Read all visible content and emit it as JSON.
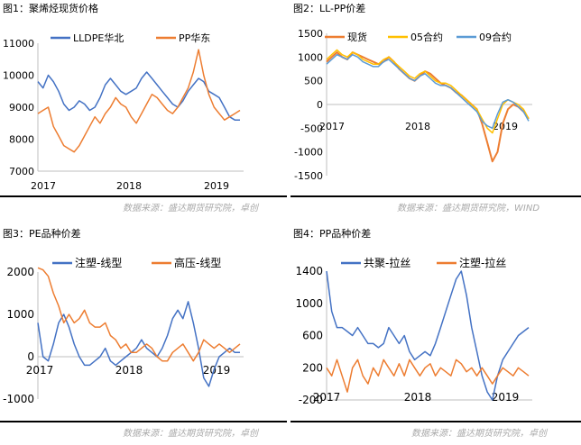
{
  "panels": [
    {
      "title": "图1：聚烯烃现货价格"
    },
    {
      "title": "图2：LL-PP价差"
    },
    {
      "title": "图3：PE品种价差"
    },
    {
      "title": "图4：PP品种价差"
    }
  ],
  "sources": [
    "数据来源：盛达期货研究院，卓创",
    "数据来源：盛达期货研究院，WIND",
    "数据来源：盛达期货研究院，卓创",
    "数据来源：盛达期货研究院，卓创"
  ],
  "chart_data": [
    {
      "type": "line",
      "title": "",
      "x_ticks": [
        "2017",
        "2018",
        "2019"
      ],
      "y_ticks": [
        7000,
        8000,
        9000,
        10000,
        11000
      ],
      "ylim": [
        7000,
        11000
      ],
      "grid": false,
      "legend": "top",
      "series": [
        {
          "name": "LLDPE华北",
          "color": "#4472c4",
          "values": [
            9800,
            9600,
            10000,
            9800,
            9500,
            9100,
            8900,
            9000,
            9200,
            9100,
            8900,
            9000,
            9300,
            9700,
            9900,
            9700,
            9500,
            9400,
            9500,
            9600,
            9900,
            10100,
            9900,
            9700,
            9500,
            9300,
            9100,
            9000,
            9200,
            9500,
            9700,
            9900,
            9800,
            9500,
            9400,
            9300,
            9000,
            8700,
            8600,
            8600
          ]
        },
        {
          "name": "PP华东",
          "color": "#ed7d31",
          "values": [
            8800,
            8900,
            9000,
            8400,
            8100,
            7800,
            7700,
            7600,
            7800,
            8100,
            8400,
            8700,
            8500,
            8800,
            9000,
            9300,
            9100,
            9000,
            8700,
            8500,
            8800,
            9100,
            9400,
            9300,
            9100,
            8900,
            8800,
            9000,
            9300,
            9600,
            10100,
            10800,
            10000,
            9400,
            9000,
            8800,
            8600,
            8700,
            8800,
            8900
          ]
        }
      ]
    },
    {
      "type": "line",
      "title": "",
      "x_ticks": [
        "2017",
        "2018",
        "2019"
      ],
      "y_ticks": [
        -1500,
        -1000,
        -500,
        0,
        500,
        1000,
        1500
      ],
      "ylim": [
        -1500,
        1500
      ],
      "grid": false,
      "legend": "top",
      "series": [
        {
          "name": "现货",
          "color": "#ed7d31",
          "values": [
            900,
            1000,
            1100,
            1000,
            950,
            1100,
            1050,
            1000,
            950,
            900,
            850,
            900,
            1000,
            900,
            750,
            650,
            550,
            500,
            600,
            700,
            650,
            550,
            450,
            400,
            350,
            250,
            200,
            100,
            0,
            -100,
            -400,
            -800,
            -1200,
            -1000,
            -400,
            -100,
            0,
            -50,
            -150,
            -300
          ]
        },
        {
          "name": "05合约",
          "color": "#ffc000",
          "values": [
            950,
            1050,
            1150,
            1050,
            1000,
            1100,
            1050,
            950,
            900,
            850,
            850,
            950,
            1000,
            900,
            800,
            700,
            600,
            550,
            650,
            700,
            600,
            500,
            450,
            450,
            400,
            300,
            200,
            100,
            0,
            -100,
            -300,
            -500,
            -600,
            -300,
            0,
            100,
            50,
            0,
            -100,
            -300
          ]
        },
        {
          "name": "09合约",
          "color": "#5b9bd5",
          "values": [
            850,
            950,
            1050,
            1000,
            950,
            1050,
            1000,
            900,
            850,
            800,
            800,
            900,
            950,
            850,
            750,
            650,
            550,
            500,
            600,
            650,
            550,
            450,
            400,
            400,
            350,
            250,
            150,
            50,
            -50,
            -150,
            -350,
            -450,
            -500,
            -200,
            50,
            100,
            50,
            -50,
            -150,
            -350
          ]
        }
      ]
    },
    {
      "type": "line",
      "title": "",
      "x_ticks": [
        "2017",
        "2018",
        "2019"
      ],
      "y_ticks": [
        -1000,
        0,
        1000,
        2000
      ],
      "ylim": [
        -1000,
        2000
      ],
      "grid": false,
      "legend": "top",
      "series": [
        {
          "name": "注塑-线型",
          "color": "#4472c4",
          "values": [
            800,
            0,
            -100,
            300,
            800,
            1000,
            700,
            300,
            0,
            -200,
            -200,
            -100,
            0,
            200,
            -100,
            -200,
            -100,
            0,
            100,
            200,
            400,
            200,
            100,
            0,
            200,
            500,
            900,
            1100,
            900,
            1300,
            800,
            200,
            -500,
            -700,
            -300,
            0,
            100,
            200,
            100,
            100
          ]
        },
        {
          "name": "高压-线型",
          "color": "#ed7d31",
          "values": [
            2100,
            2050,
            1900,
            1500,
            1200,
            800,
            1000,
            800,
            900,
            1100,
            800,
            700,
            700,
            800,
            500,
            400,
            200,
            300,
            100,
            100,
            200,
            300,
            200,
            0,
            -100,
            -100,
            100,
            200,
            300,
            100,
            -100,
            100,
            400,
            300,
            200,
            300,
            200,
            100,
            200,
            300
          ]
        }
      ]
    },
    {
      "type": "line",
      "title": "",
      "x_ticks": [
        "2017",
        "2018",
        "2019"
      ],
      "y_ticks": [
        -200,
        200,
        600,
        1000,
        1400
      ],
      "ylim": [
        -200,
        1400
      ],
      "grid": false,
      "legend": "top",
      "series": [
        {
          "name": "共聚-拉丝",
          "color": "#4472c4",
          "values": [
            1400,
            900,
            700,
            700,
            650,
            600,
            700,
            600,
            500,
            500,
            450,
            500,
            700,
            600,
            500,
            600,
            400,
            300,
            350,
            400,
            350,
            500,
            700,
            900,
            1100,
            1300,
            1400,
            1100,
            700,
            400,
            100,
            -100,
            -200,
            100,
            300,
            400,
            500,
            600,
            650,
            700
          ]
        },
        {
          "name": "注塑-拉丝",
          "color": "#ed7d31",
          "values": [
            200,
            100,
            300,
            100,
            -100,
            200,
            300,
            100,
            0,
            200,
            100,
            300,
            200,
            100,
            250,
            100,
            300,
            200,
            100,
            200,
            250,
            100,
            200,
            150,
            100,
            300,
            250,
            150,
            200,
            100,
            200,
            100,
            0,
            100,
            200,
            150,
            100,
            200,
            150,
            100
          ]
        }
      ]
    }
  ]
}
